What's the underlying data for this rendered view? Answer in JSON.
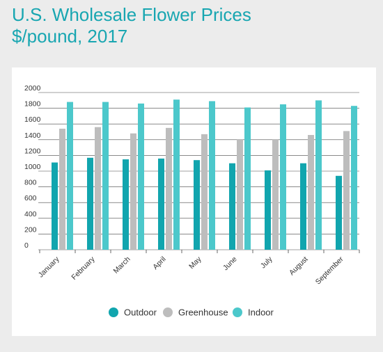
{
  "header": {
    "title_line1": "U.S. Wholesale Flower Prices",
    "title_line2": "$/pound, 2017"
  },
  "colors": {
    "title": "#18a6b1",
    "outdoor": "#11a5ae",
    "greenhouse": "#bdbdbd",
    "indoor": "#4cc8cb",
    "grid": "#444444"
  },
  "chart_data": {
    "type": "bar",
    "title": "U.S. Wholesale Flower Prices $/pound, 2017",
    "xlabel": "",
    "ylabel": "",
    "ylim": [
      0,
      2000
    ],
    "yticks": [
      0,
      200,
      400,
      600,
      800,
      1000,
      1200,
      1400,
      1600,
      1800,
      2000
    ],
    "grid": true,
    "legend_position": "bottom",
    "categories": [
      "January",
      "February",
      "March",
      "April",
      "May",
      "June",
      "July",
      "August",
      "September"
    ],
    "series": [
      {
        "name": "Outdoor",
        "color": "#11a5ae",
        "values": [
          1110,
          1170,
          1150,
          1160,
          1140,
          1100,
          1010,
          1100,
          940
        ]
      },
      {
        "name": "Greenhouse",
        "color": "#bdbdbd",
        "values": [
          1540,
          1560,
          1480,
          1550,
          1470,
          1400,
          1400,
          1460,
          1510
        ]
      },
      {
        "name": "Indoor",
        "color": "#4cc8cb",
        "values": [
          1880,
          1880,
          1860,
          1910,
          1890,
          1810,
          1850,
          1900,
          1830
        ]
      }
    ]
  }
}
